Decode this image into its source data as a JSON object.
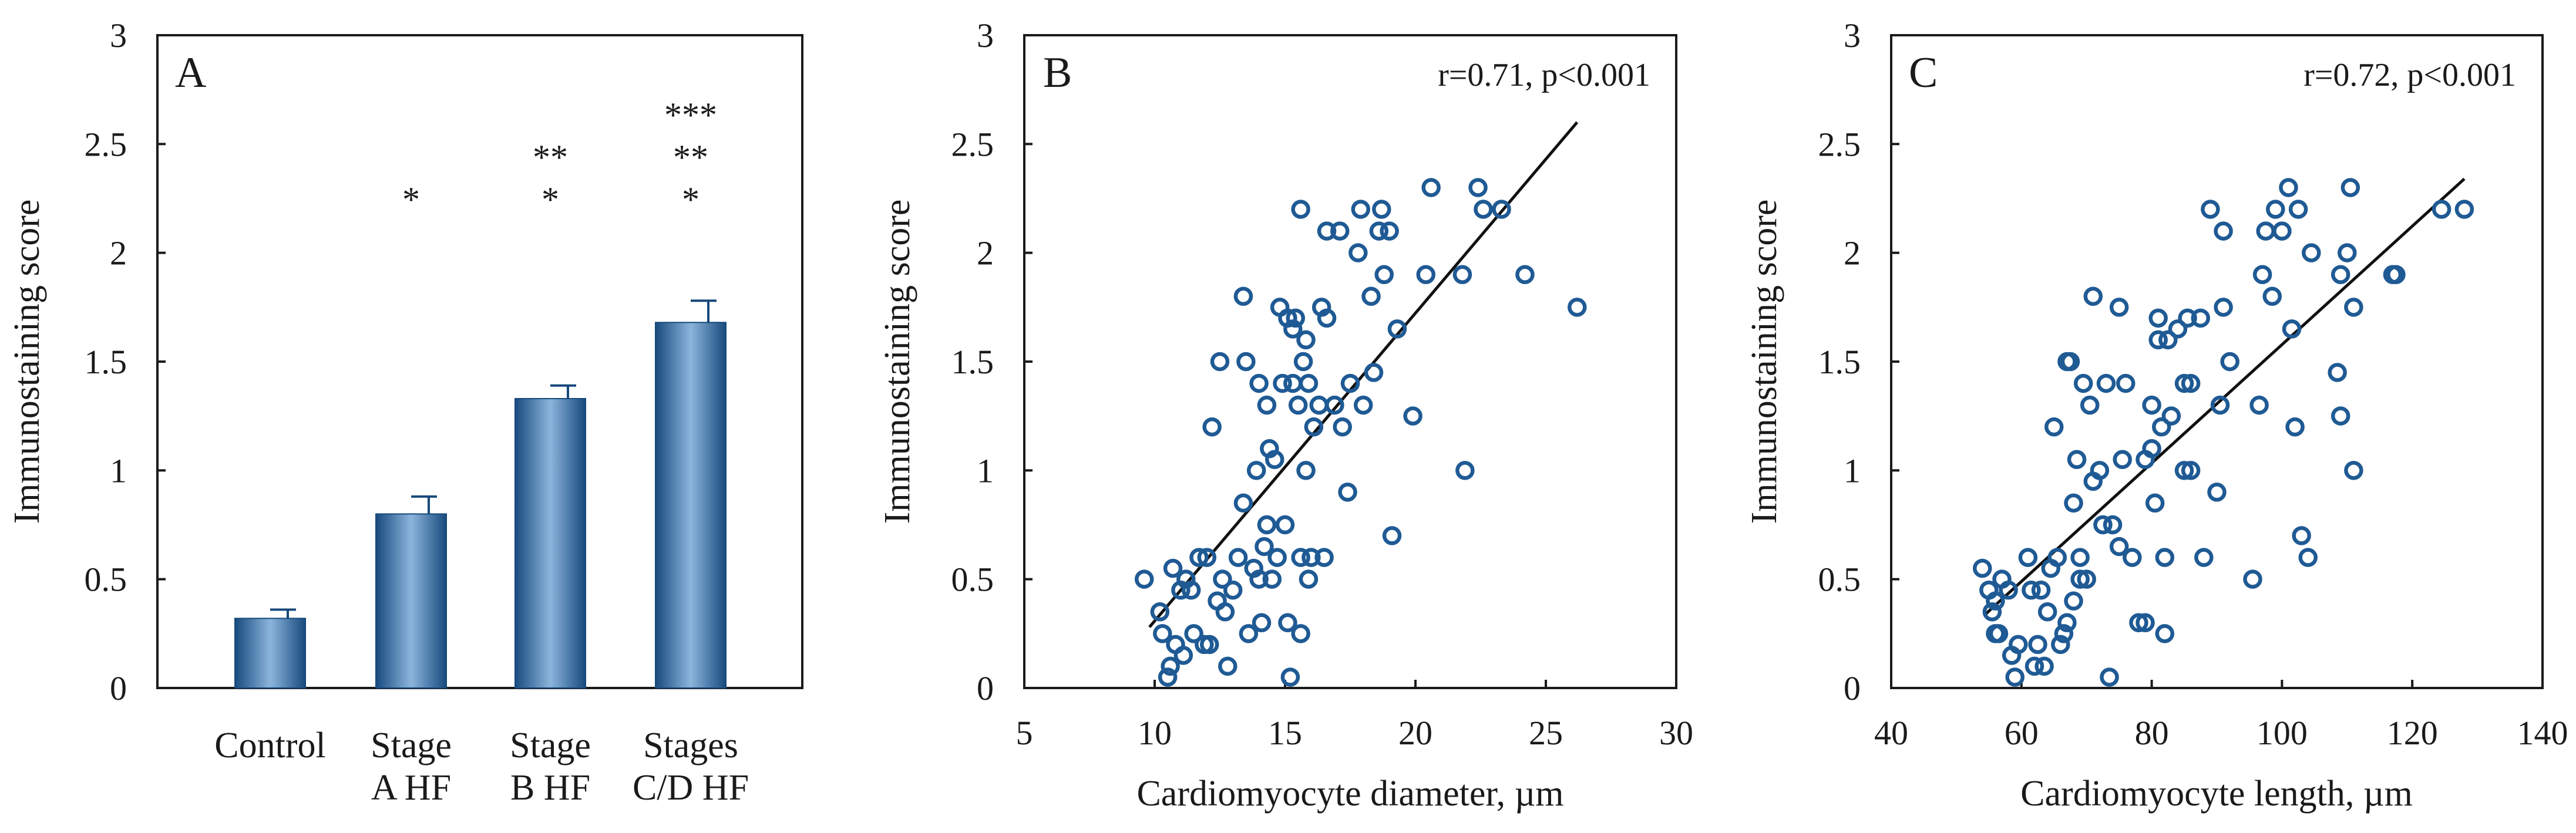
{
  "chart_data": [
    {
      "panel": "A",
      "type": "bar",
      "categories": [
        [
          "Control"
        ],
        [
          "Stage",
          "A HF"
        ],
        [
          "Stage",
          "B HF"
        ],
        [
          "Stages",
          "C/D HF"
        ]
      ],
      "values": [
        0.32,
        0.8,
        1.33,
        1.68
      ],
      "errors": [
        0.04,
        0.08,
        0.06,
        0.1
      ],
      "significance": [
        [],
        [
          "*"
        ],
        [
          "**",
          "*"
        ],
        [
          "***",
          "**",
          "*"
        ]
      ],
      "ylabel": "Immunostaining score",
      "xlabel": "",
      "ylim": [
        0,
        3
      ],
      "yticks": [
        "0",
        "0.5",
        "1",
        "1.5",
        "2",
        "2.5",
        "3"
      ],
      "colors": {
        "bar_dark": "#174a7e",
        "bar_light": "#8cb5dc",
        "error": "#16497a"
      }
    },
    {
      "panel": "B",
      "type": "scatter",
      "annotation": "r=0.71,  p<0.001",
      "xlabel": "Cardiomyocyte diameter, µm",
      "ylabel": "Immunostaining score",
      "xlim": [
        5,
        30
      ],
      "ylim": [
        0,
        3
      ],
      "xticks": [
        "5",
        "10",
        "15",
        "20",
        "25",
        "30"
      ],
      "yticks": [
        "0",
        "0.5",
        "1",
        "1.5",
        "2",
        "2.5",
        "3"
      ],
      "fit_line": {
        "x": [
          9.8,
          26.2
        ],
        "y": [
          0.28,
          2.6
        ]
      },
      "points": [
        [
          9.6,
          0.5
        ],
        [
          10.2,
          0.35
        ],
        [
          10.3,
          0.25
        ],
        [
          10.5,
          0.05
        ],
        [
          10.6,
          0.1
        ],
        [
          10.7,
          0.55
        ],
        [
          10.8,
          0.2
        ],
        [
          11.0,
          0.45
        ],
        [
          11.1,
          0.15
        ],
        [
          11.2,
          0.5
        ],
        [
          11.4,
          0.45
        ],
        [
          11.5,
          0.25
        ],
        [
          11.7,
          0.6
        ],
        [
          11.9,
          0.2
        ],
        [
          12.0,
          0.6
        ],
        [
          12.1,
          0.2
        ],
        [
          12.2,
          1.2
        ],
        [
          12.4,
          0.4
        ],
        [
          12.5,
          1.5
        ],
        [
          12.6,
          0.5
        ],
        [
          12.7,
          0.35
        ],
        [
          12.8,
          0.1
        ],
        [
          13.0,
          0.45
        ],
        [
          13.2,
          0.6
        ],
        [
          13.4,
          1.8
        ],
        [
          13.4,
          0.85
        ],
        [
          13.5,
          1.5
        ],
        [
          13.6,
          0.25
        ],
        [
          13.8,
          0.55
        ],
        [
          13.9,
          1.0
        ],
        [
          14.0,
          1.4
        ],
        [
          14.0,
          0.5
        ],
        [
          14.1,
          0.3
        ],
        [
          14.2,
          0.65
        ],
        [
          14.3,
          0.75
        ],
        [
          14.3,
          1.3
        ],
        [
          14.4,
          1.1
        ],
        [
          14.5,
          0.5
        ],
        [
          14.6,
          1.05
        ],
        [
          14.7,
          0.6
        ],
        [
          14.8,
          1.75
        ],
        [
          14.9,
          1.4
        ],
        [
          15.0,
          0.75
        ],
        [
          15.1,
          1.7
        ],
        [
          15.1,
          0.3
        ],
        [
          15.2,
          0.05
        ],
        [
          15.3,
          1.65
        ],
        [
          15.3,
          1.4
        ],
        [
          15.4,
          1.7
        ],
        [
          15.5,
          1.3
        ],
        [
          15.6,
          2.2
        ],
        [
          15.6,
          0.6
        ],
        [
          15.6,
          0.25
        ],
        [
          15.7,
          1.5
        ],
        [
          15.8,
          1.6
        ],
        [
          15.8,
          1.0
        ],
        [
          15.9,
          1.4
        ],
        [
          15.9,
          0.5
        ],
        [
          16.0,
          0.6
        ],
        [
          16.1,
          1.2
        ],
        [
          16.3,
          1.3
        ],
        [
          16.4,
          1.75
        ],
        [
          16.5,
          0.6
        ],
        [
          16.6,
          2.1
        ],
        [
          16.6,
          1.7
        ],
        [
          16.9,
          1.3
        ],
        [
          17.1,
          2.1
        ],
        [
          17.2,
          1.2
        ],
        [
          17.4,
          0.9
        ],
        [
          17.5,
          1.4
        ],
        [
          17.8,
          2.0
        ],
        [
          17.9,
          2.2
        ],
        [
          18.0,
          1.3
        ],
        [
          18.3,
          1.8
        ],
        [
          18.4,
          1.45
        ],
        [
          18.6,
          2.1
        ],
        [
          18.7,
          2.2
        ],
        [
          18.8,
          1.9
        ],
        [
          19.0,
          2.1
        ],
        [
          19.1,
          0.7
        ],
        [
          19.3,
          1.65
        ],
        [
          19.9,
          1.25
        ],
        [
          20.4,
          1.9
        ],
        [
          20.6,
          2.3
        ],
        [
          21.8,
          1.9
        ],
        [
          21.9,
          1.0
        ],
        [
          22.4,
          2.3
        ],
        [
          22.6,
          2.2
        ],
        [
          23.3,
          2.2
        ],
        [
          24.2,
          1.9
        ],
        [
          26.2,
          1.75
        ]
      ],
      "colors": {
        "points": "#1f5a94",
        "fit": "#111111"
      }
    },
    {
      "panel": "C",
      "type": "scatter",
      "annotation": "r=0.72,  p<0.001",
      "xlabel": "Cardiomyocyte length, µm",
      "ylabel": "Immunostaining score",
      "xlim": [
        40,
        140
      ],
      "ylim": [
        0,
        3
      ],
      "xticks": [
        "40",
        "60",
        "80",
        "100",
        "120",
        "140"
      ],
      "yticks": [
        "0",
        "0.5",
        "1",
        "1.5",
        "2",
        "2.5",
        "3"
      ],
      "fit_line": {
        "x": [
          54.5,
          128
        ],
        "y": [
          0.34,
          2.34
        ]
      },
      "points": [
        [
          54,
          0.55
        ],
        [
          55,
          0.45
        ],
        [
          55.5,
          0.35
        ],
        [
          56,
          0.25
        ],
        [
          56,
          0.4
        ],
        [
          56.5,
          0.25
        ],
        [
          57,
          0.5
        ],
        [
          58,
          0.45
        ],
        [
          58.5,
          0.15
        ],
        [
          59,
          0.05
        ],
        [
          59.5,
          0.2
        ],
        [
          61,
          0.6
        ],
        [
          61.5,
          0.45
        ],
        [
          62,
          0.1
        ],
        [
          62.5,
          0.2
        ],
        [
          63,
          0.45
        ],
        [
          63.5,
          0.1
        ],
        [
          64,
          0.35
        ],
        [
          64.5,
          0.55
        ],
        [
          65,
          1.2
        ],
        [
          65.5,
          0.6
        ],
        [
          66,
          0.2
        ],
        [
          66.5,
          0.25
        ],
        [
          67,
          0.3
        ],
        [
          67,
          1.5
        ],
        [
          67.5,
          1.5
        ],
        [
          68,
          0.85
        ],
        [
          68,
          0.4
        ],
        [
          68.5,
          1.05
        ],
        [
          69,
          0.5
        ],
        [
          69,
          0.6
        ],
        [
          69.5,
          1.4
        ],
        [
          70,
          0.5
        ],
        [
          70.5,
          1.3
        ],
        [
          71,
          0.95
        ],
        [
          71,
          1.8
        ],
        [
          72,
          1.0
        ],
        [
          72.5,
          0.75
        ],
        [
          73,
          1.4
        ],
        [
          73.5,
          0.05
        ],
        [
          74,
          0.75
        ],
        [
          75,
          1.75
        ],
        [
          75,
          0.65
        ],
        [
          75.5,
          1.05
        ],
        [
          76,
          1.4
        ],
        [
          77,
          0.6
        ],
        [
          78,
          0.3
        ],
        [
          79,
          0.3
        ],
        [
          79,
          1.05
        ],
        [
          80,
          1.1
        ],
        [
          80,
          1.3
        ],
        [
          80.5,
          0.85
        ],
        [
          81,
          1.7
        ],
        [
          81,
          1.6
        ],
        [
          81.5,
          1.2
        ],
        [
          82,
          0.25
        ],
        [
          82,
          0.6
        ],
        [
          82.5,
          1.6
        ],
        [
          83,
          1.25
        ],
        [
          84,
          1.65
        ],
        [
          85,
          1.4
        ],
        [
          85,
          1.0
        ],
        [
          85.5,
          1.7
        ],
        [
          86,
          1.4
        ],
        [
          86,
          1.0
        ],
        [
          87.5,
          1.7
        ],
        [
          88,
          0.6
        ],
        [
          89,
          2.2
        ],
        [
          90,
          0.9
        ],
        [
          90.5,
          1.3
        ],
        [
          91,
          2.1
        ],
        [
          91,
          1.75
        ],
        [
          92,
          1.5
        ],
        [
          95.5,
          0.5
        ],
        [
          96.5,
          1.3
        ],
        [
          97,
          1.9
        ],
        [
          97.5,
          2.1
        ],
        [
          98.5,
          1.8
        ],
        [
          99,
          2.2
        ],
        [
          100,
          2.1
        ],
        [
          101,
          2.3
        ],
        [
          101.5,
          1.65
        ],
        [
          102,
          1.2
        ],
        [
          102.5,
          2.2
        ],
        [
          103,
          0.7
        ],
        [
          104,
          0.6
        ],
        [
          104.5,
          2.0
        ],
        [
          108.5,
          1.45
        ],
        [
          109,
          1.25
        ],
        [
          109,
          1.9
        ],
        [
          110,
          2.0
        ],
        [
          110.5,
          2.3
        ],
        [
          111,
          1.75
        ],
        [
          111,
          1.0
        ],
        [
          117,
          1.9
        ],
        [
          117.5,
          1.9
        ],
        [
          124.5,
          2.2
        ],
        [
          128,
          2.2
        ]
      ],
      "colors": {
        "points": "#1f5a94",
        "fit": "#111111"
      }
    }
  ]
}
